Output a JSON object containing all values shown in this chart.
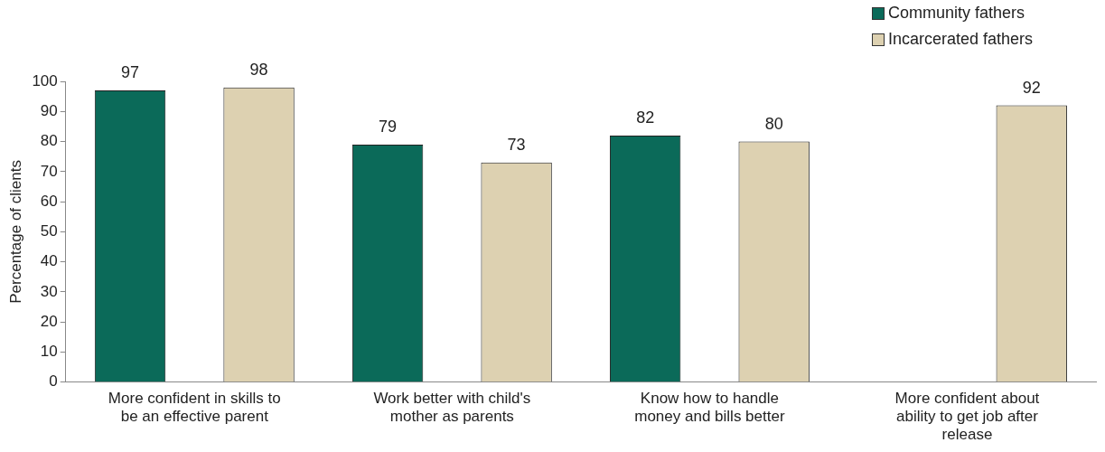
{
  "chart_data": {
    "type": "bar",
    "ylabel": "Percentage of clients",
    "categories": [
      "More confident in skills to be an effective parent",
      "Work better with child's mother as parents",
      "Know how to handle money and bills better",
      "More confident about ability to get job after release"
    ],
    "series": [
      {
        "name": "Community fathers",
        "color": "#0b6a59",
        "values": [
          97,
          79,
          82,
          null
        ]
      },
      {
        "name": "Incarcerated fathers",
        "color": "#ddd1b1",
        "values": [
          98,
          73,
          80,
          92
        ]
      }
    ],
    "ylim": [
      0,
      100
    ],
    "yticks": [
      0,
      10,
      20,
      30,
      40,
      50,
      60,
      70,
      80,
      90,
      100
    ],
    "grid": false,
    "legend": "top right",
    "data_labels": true
  }
}
